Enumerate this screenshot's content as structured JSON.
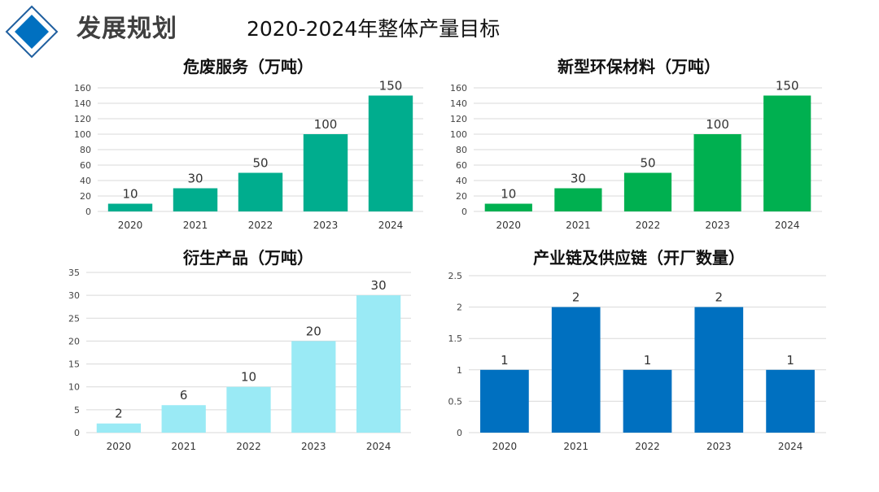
{
  "header": {
    "title": "发展规划",
    "subtitle": "2020-2024年整体产量目标"
  },
  "chart_data": [
    {
      "type": "bar",
      "title": "危废服务（万吨）",
      "categories": [
        "2020",
        "2021",
        "2022",
        "2023",
        "2024"
      ],
      "values": [
        10,
        30,
        50,
        100,
        150
      ],
      "ylim": [
        0,
        160
      ],
      "yticks": [
        0,
        20,
        40,
        60,
        80,
        100,
        120,
        140,
        160
      ],
      "color": "#00ad8e",
      "grid": true,
      "data_labels": true
    },
    {
      "type": "bar",
      "title": "新型环保材料（万吨）",
      "categories": [
        "2020",
        "2021",
        "2022",
        "2023",
        "2024"
      ],
      "values": [
        10,
        30,
        50,
        100,
        150
      ],
      "ylim": [
        0,
        160
      ],
      "yticks": [
        0,
        20,
        40,
        60,
        80,
        100,
        120,
        140,
        160
      ],
      "color": "#00b050",
      "grid": true,
      "data_labels": true
    },
    {
      "type": "bar",
      "title": "衍生产品（万吨）",
      "categories": [
        "2020",
        "2021",
        "2022",
        "2023",
        "2024"
      ],
      "values": [
        2,
        6,
        10,
        20,
        30
      ],
      "ylim": [
        0,
        35
      ],
      "yticks": [
        0,
        5,
        10,
        15,
        20,
        25,
        30,
        35
      ],
      "color": "#9aeaf5",
      "grid": true,
      "data_labels": true
    },
    {
      "type": "bar",
      "title": "产业链及供应链（开厂数量）",
      "categories": [
        "2020",
        "2021",
        "2022",
        "2023",
        "2024"
      ],
      "values": [
        1,
        2,
        1,
        2,
        1
      ],
      "ylim": [
        0,
        2.5
      ],
      "yticks": [
        0,
        0.5,
        1,
        1.5,
        2,
        2.5
      ],
      "color": "#0070c0",
      "grid": true,
      "data_labels": true
    }
  ]
}
